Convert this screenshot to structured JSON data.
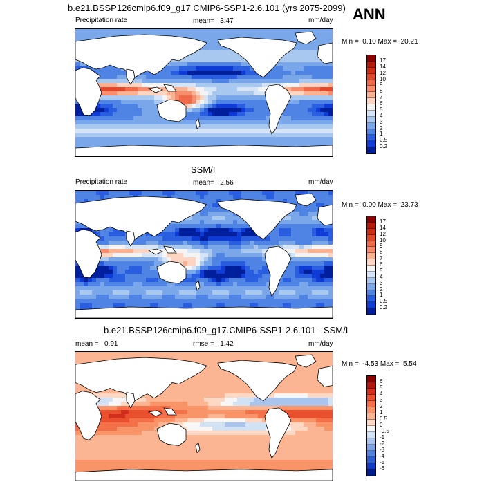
{
  "season": "ANN",
  "panels": [
    {
      "title": "b.e21.BSSP126cmip6.f09_g17.CMIP6-SSP1-2.6.101 (yrs 2075-2099)",
      "left_label": "Precipitation rate",
      "mid_label": "mean=",
      "mid_value": "3.47",
      "right_label": "mm/day",
      "minmax_prefix": "Min =",
      "min_value": "0.10",
      "max_label": "Max =",
      "max_value": "20.21",
      "kind": "model",
      "colorbar": {
        "labels": [
          "17",
          "14",
          "12",
          "10",
          "9",
          "8",
          "7",
          "6",
          "5",
          "4",
          "3",
          "2",
          "1",
          "0.5",
          "0.2"
        ],
        "colors": [
          "#8b0000",
          "#b21a0a",
          "#cc2e14",
          "#e04a2a",
          "#ef6a48",
          "#f78d6c",
          "#fbb293",
          "#fdd5c2",
          "#f4f4f4",
          "#d6e4f7",
          "#a9c8f0",
          "#7aa7ea",
          "#4f84e5",
          "#2a5ee0",
          "#0f3bd6",
          "#001f9c"
        ]
      }
    },
    {
      "title": "SSM/I",
      "left_label": "Precipitation rate",
      "mid_label": "mean=",
      "mid_value": "2.56",
      "right_label": "mm/day",
      "minmax_prefix": "Min =",
      "min_value": "0.00",
      "max_label": "Max =",
      "max_value": "23.73",
      "kind": "obs",
      "colorbar": {
        "labels": [
          "17",
          "14",
          "12",
          "10",
          "9",
          "8",
          "7",
          "6",
          "5",
          "4",
          "3",
          "2",
          "1",
          "0.5",
          "0.2"
        ],
        "colors": [
          "#8b0000",
          "#b21a0a",
          "#cc2e14",
          "#e04a2a",
          "#ef6a48",
          "#f78d6c",
          "#fbb293",
          "#fdd5c2",
          "#f4f4f4",
          "#d6e4f7",
          "#a9c8f0",
          "#7aa7ea",
          "#4f84e5",
          "#2a5ee0",
          "#0f3bd6",
          "#001f9c"
        ]
      }
    },
    {
      "title": "b.e21.BSSP126cmip6.f09_g17.CMIP6-SSP1-2.6.101 - SSM/I",
      "left_label": "mean =",
      "left_value": "0.91",
      "mid_label": "rmse =",
      "mid_value": "1.42",
      "right_label": "mm/day",
      "minmax_prefix": "Min =",
      "min_value": "-4.53",
      "max_label": "Max =",
      "max_value": "5.54",
      "kind": "diff",
      "colorbar": {
        "labels": [
          "6",
          "5",
          "4",
          "3",
          "2",
          "1",
          "0.5",
          "0",
          "-0.5",
          "-1",
          "-2",
          "-3",
          "-4",
          "-5",
          "-6"
        ],
        "colors": [
          "#8b0000",
          "#b3150d",
          "#d2301c",
          "#e8502e",
          "#f47048",
          "#f99368",
          "#fcb592",
          "#fdd8c4",
          "#f6f6f6",
          "#d2e2f5",
          "#a9c5ee",
          "#7fa5e6",
          "#5483de",
          "#2c5fd4",
          "#0f3cc2",
          "#001f8f"
        ]
      }
    }
  ]
}
